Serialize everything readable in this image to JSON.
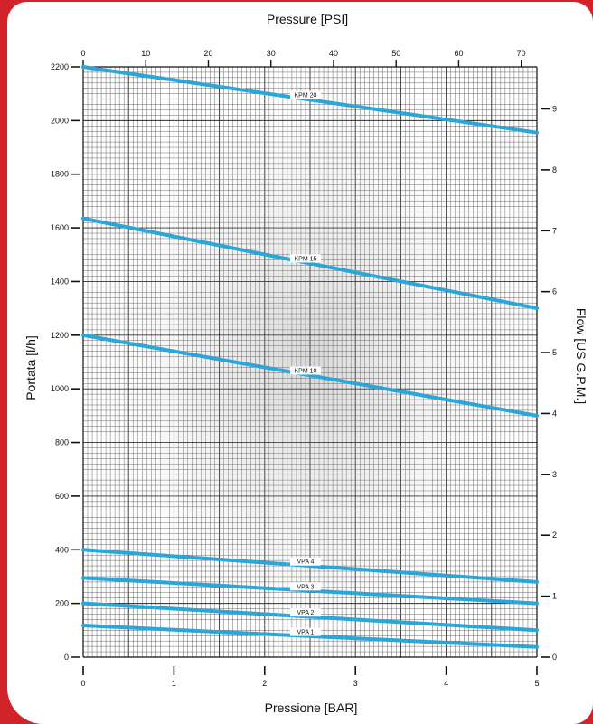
{
  "chart_data": {
    "type": "line",
    "title": "",
    "top_axis": {
      "label": "Pressure [PSI]",
      "range": [
        0,
        72.5
      ],
      "ticks": [
        0,
        10,
        20,
        30,
        40,
        50,
        60,
        70
      ],
      "tick_labels": [
        "0",
        "10",
        "20",
        "30",
        "40",
        "50",
        "60",
        "70"
      ]
    },
    "x_axis": {
      "label": "Pressione [BAR]",
      "range": [
        0,
        5
      ],
      "ticks": [
        0,
        1,
        2,
        3,
        4,
        5
      ],
      "tick_labels": [
        "0",
        "1",
        "2",
        "3",
        "4",
        "5"
      ]
    },
    "y_axis": {
      "label": "Portata [l/h]",
      "range": [
        0,
        2200
      ],
      "ticks": [
        0,
        200,
        400,
        600,
        800,
        1000,
        1200,
        1400,
        1600,
        1800,
        2000,
        2200
      ],
      "tick_labels": [
        "0",
        "200",
        "400",
        "600",
        "800",
        "1000",
        "1200",
        "1400",
        "1600",
        "1800",
        "2000",
        "2200"
      ]
    },
    "right_axis": {
      "label": "Flow [US G.P.M.]",
      "range": [
        0,
        9.69
      ],
      "ticks": [
        0,
        1,
        2,
        3,
        4,
        5,
        6,
        7,
        8,
        9
      ],
      "tick_labels": [
        "0",
        "1",
        "2",
        "3",
        "4",
        "5",
        "6",
        "7",
        "8",
        "9"
      ]
    },
    "grid": true,
    "series_color": "#2aa7d8",
    "series": [
      {
        "name": "KPM 20",
        "x": [
          0,
          5
        ],
        "y": [
          2200,
          1955
        ]
      },
      {
        "name": "KPM 15",
        "x": [
          0,
          5
        ],
        "y": [
          1635,
          1300
        ]
      },
      {
        "name": "KPM 10",
        "x": [
          0,
          5
        ],
        "y": [
          1200,
          900
        ]
      },
      {
        "name": "VPA 4",
        "x": [
          0,
          5
        ],
        "y": [
          400,
          280
        ]
      },
      {
        "name": "VPA 3",
        "x": [
          0,
          5
        ],
        "y": [
          295,
          200
        ]
      },
      {
        "name": "VPA 2",
        "x": [
          0,
          5
        ],
        "y": [
          200,
          100
        ]
      },
      {
        "name": "VPA 1",
        "x": [
          0,
          5
        ],
        "y": [
          118,
          38
        ]
      }
    ]
  }
}
